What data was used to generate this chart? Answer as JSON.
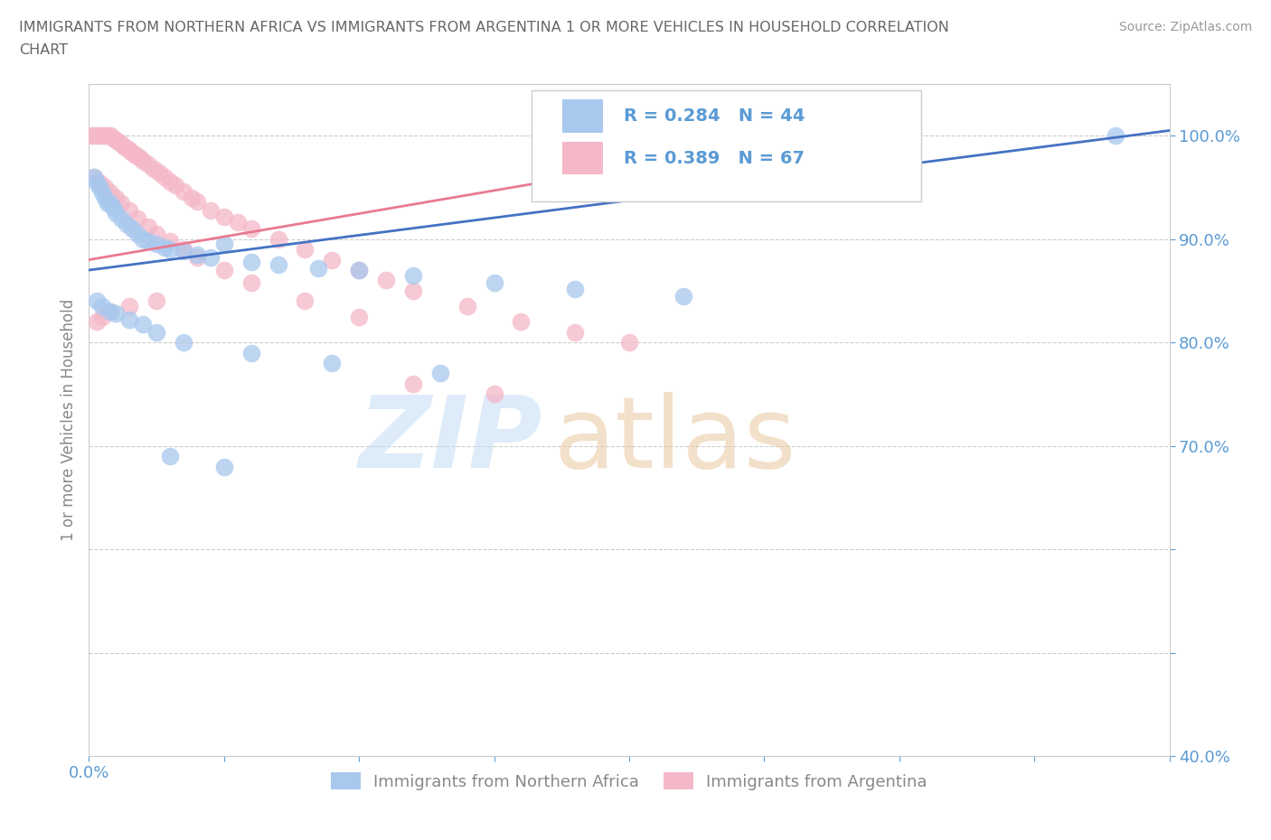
{
  "title_line1": "IMMIGRANTS FROM NORTHERN AFRICA VS IMMIGRANTS FROM ARGENTINA 1 OR MORE VEHICLES IN HOUSEHOLD CORRELATION",
  "title_line2": "CHART",
  "source": "Source: ZipAtlas.com",
  "ylabel": "1 or more Vehicles in Household",
  "xlim": [
    0.0,
    0.4
  ],
  "ylim": [
    0.4,
    1.05
  ],
  "x_ticks": [
    0.0,
    0.05,
    0.1,
    0.15,
    0.2,
    0.25,
    0.3,
    0.35,
    0.4
  ],
  "y_ticks": [
    0.4,
    0.5,
    0.6,
    0.7,
    0.8,
    0.9,
    1.0
  ],
  "y_tick_labels": [
    "40.0%",
    "",
    "",
    "70.0%",
    "80.0%",
    "90.0%",
    "100.0%"
  ],
  "blue_color": "#a8c8ee",
  "pink_color": "#f4b8c8",
  "blue_line_color": "#4472c4",
  "pink_line_color": "#e87a90",
  "legend_blue_label": "Immigrants from Northern Africa",
  "legend_pink_label": "Immigrants from Argentina",
  "R_blue": 0.284,
  "N_blue": 44,
  "R_pink": 0.389,
  "N_pink": 67,
  "background_color": "#ffffff",
  "grid_color": "#cccccc",
  "tick_color": "#5b9bd5",
  "title_color": "#666666",
  "source_color": "#999999",
  "ylabel_color": "#888888",
  "blue_scatter_x": [
    0.002,
    0.003,
    0.004,
    0.005,
    0.006,
    0.007,
    0.008,
    0.009,
    0.01,
    0.012,
    0.014,
    0.016,
    0.018,
    0.02,
    0.022,
    0.025,
    0.028,
    0.03,
    0.035,
    0.04,
    0.045,
    0.05,
    0.06,
    0.07,
    0.085,
    0.1,
    0.12,
    0.15,
    0.18,
    0.22,
    0.003,
    0.005,
    0.008,
    0.01,
    0.015,
    0.02,
    0.025,
    0.035,
    0.06,
    0.09,
    0.13,
    0.03,
    0.05,
    0.38
  ],
  "blue_scatter_y": [
    0.96,
    0.955,
    0.95,
    0.945,
    0.94,
    0.935,
    0.935,
    0.93,
    0.925,
    0.92,
    0.915,
    0.91,
    0.905,
    0.9,
    0.898,
    0.895,
    0.892,
    0.89,
    0.888,
    0.885,
    0.882,
    0.895,
    0.878,
    0.875,
    0.872,
    0.87,
    0.865,
    0.858,
    0.852,
    0.845,
    0.84,
    0.835,
    0.83,
    0.828,
    0.822,
    0.818,
    0.81,
    0.8,
    0.79,
    0.78,
    0.77,
    0.69,
    0.68,
    1.0
  ],
  "pink_scatter_x": [
    0.001,
    0.002,
    0.003,
    0.004,
    0.005,
    0.006,
    0.007,
    0.008,
    0.009,
    0.01,
    0.011,
    0.012,
    0.013,
    0.014,
    0.015,
    0.016,
    0.017,
    0.018,
    0.019,
    0.02,
    0.022,
    0.024,
    0.026,
    0.028,
    0.03,
    0.032,
    0.035,
    0.038,
    0.04,
    0.045,
    0.05,
    0.055,
    0.06,
    0.07,
    0.08,
    0.09,
    0.1,
    0.11,
    0.12,
    0.14,
    0.16,
    0.18,
    0.2,
    0.002,
    0.004,
    0.006,
    0.008,
    0.01,
    0.012,
    0.015,
    0.018,
    0.022,
    0.025,
    0.03,
    0.035,
    0.04,
    0.05,
    0.06,
    0.08,
    0.1,
    0.025,
    0.015,
    0.008,
    0.005,
    0.003,
    0.12,
    0.15
  ],
  "pink_scatter_y": [
    1.0,
    1.0,
    1.0,
    1.0,
    1.0,
    1.0,
    1.0,
    1.0,
    0.998,
    0.996,
    0.994,
    0.992,
    0.99,
    0.988,
    0.986,
    0.984,
    0.982,
    0.98,
    0.978,
    0.976,
    0.972,
    0.968,
    0.964,
    0.96,
    0.956,
    0.952,
    0.946,
    0.94,
    0.936,
    0.928,
    0.922,
    0.916,
    0.91,
    0.9,
    0.89,
    0.88,
    0.87,
    0.86,
    0.85,
    0.835,
    0.82,
    0.81,
    0.8,
    0.96,
    0.955,
    0.95,
    0.945,
    0.94,
    0.935,
    0.928,
    0.92,
    0.912,
    0.905,
    0.898,
    0.89,
    0.882,
    0.87,
    0.858,
    0.84,
    0.825,
    0.84,
    0.835,
    0.83,
    0.825,
    0.82,
    0.76,
    0.75
  ],
  "blue_line_x": [
    0.0,
    0.4
  ],
  "blue_line_y": [
    0.87,
    1.005
  ],
  "pink_line_x": [
    0.0,
    0.28
  ],
  "pink_line_y": [
    0.88,
    1.005
  ]
}
